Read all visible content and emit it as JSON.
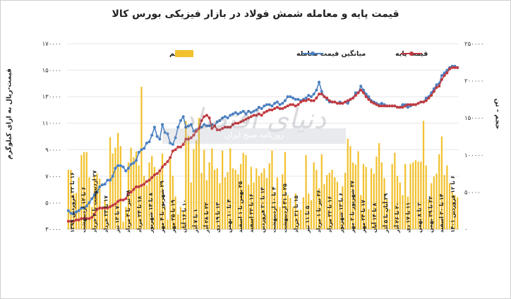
{
  "chart_data": {
    "type": "line",
    "title": "قیمت پایه و معامله شمش فولاد در بازار فیزیکی بورس کالا",
    "ylabel_left": "قیمت-ریال به ازای کیلوگرم",
    "ylabel_right": "حجم - تن",
    "y_left_ticks": [
      "۳۰۰۰۰",
      "۵۰۰۰۰",
      "۷۰۰۰۰",
      "۹۰۰۰۰",
      "۱۱۰۰۰۰",
      "۱۳۰۰۰۰",
      "۱۵۰۰۰۰",
      "۱۷۰۰۰۰"
    ],
    "y_left_range": [
      30000,
      170000
    ],
    "y_right_ticks": [
      "۰",
      "۵۰۰۰۰",
      "۱۰۰۰۰۰",
      "۱۵۰۰۰۰",
      "۲۰۰۰۰۰",
      "۲۵۰۰۰۰"
    ],
    "y_right_range": [
      0,
      250000
    ],
    "legend_position": "top",
    "x_tick_labels": [
      "۱۶ تا ۲۲ فروردین ۱۳۹۹",
      "۶ تا ۱۲ اردیبهشت",
      "۲۷ اردیبهشت تا ۲ خرداد",
      "۱۷ تا ۲۳ خرداد",
      "۷ تا ۱۳ تیر",
      "۲۸ تیر تا ۳ مرداد",
      "۱۸ تا ۲۴ مرداد",
      "۸ تا ۱۴ شهریور",
      "۲۹ شهریور تا ۴ مهر",
      "۱۹ تا ۲۵ مهر",
      "۱۰ تا ۱۶ آبان",
      "۱ تا ۷ آذر",
      "۲۲ تا ۲۸ آذر",
      "۱۳ تا ۱۹ دی",
      "۴ تا ۱۰ بهمن",
      "۲۵ بهمن تا ۱ اسفند",
      "۱۶ تا ۲۲ اسفند",
      "۱۴ تا ۲۰ فروردین",
      "۴ تا ۱۰ اردیبهشت",
      "۲۵ تا ۳۱ اردیبهشت",
      "۱۵ تا ۲۱ خرداد",
      "۵ تا ۱۱ تیر",
      "۲۶ تیر تا ۱ مرداد",
      "۱۶ تا ۲۲ مرداد",
      "۶ تا ۱۲ شهریور",
      "۲۷ شهریور تا ۲ مهر",
      "۱۷ تا ۲۳ مهر",
      "۸ تا ۱۴ آبان",
      "۲۹ آبان تا ۵ آذر",
      "۲۰ تا ۲۶ آذر",
      "۱۱ تا ۱۷ دی",
      "۲ تا ۸ بهمن",
      "۲۳ تا ۲۹ بهمن",
      "۱۴ تا ۲۰ اسفند",
      "۶ تا ۱۲ فروردین ۱۴۰۱"
    ],
    "series": [
      {
        "name": "حجم",
        "type": "bar",
        "axis": "right",
        "color": "#f2c12e",
        "values": [
          80000,
          80000,
          48000,
          49000,
          70000,
          100000,
          104000,
          104000,
          70000,
          30000,
          72000,
          75000,
          68000,
          30000,
          40000,
          34000,
          124000,
          102000,
          110000,
          130000,
          112000,
          10000,
          30000,
          90000,
          110000,
          97000,
          105000,
          86000,
          192000,
          72000,
          59000,
          90000,
          99000,
          84000,
          72000,
          81000,
          102000,
          30000,
          13000,
          94000,
          72000,
          44000,
          20000,
          30000,
          25000,
          146000,
          126000,
          63000,
          108000,
          120000,
          150000,
          76000,
          107000,
          66000,
          90000,
          109000,
          80000,
          82000,
          62000,
          106000,
          70000,
          77000,
          109000,
          82000,
          80000,
          74000,
          88000,
          103000,
          100000,
          60000,
          84000,
          63000,
          82000,
          72000,
          76000,
          82000,
          69000,
          89000,
          106000,
          50000,
          70000,
          30000,
          74000,
          104000,
          46000,
          42000,
          30000,
          48000,
          26000,
          26000,
          43000,
          100000,
          48000,
          39000,
          90000,
          80000,
          55000,
          101000,
          61000,
          73000,
          76000,
          80000,
          70000,
          64000,
          38000,
          58000,
          76000,
          122000,
          112000,
          90000,
          87000,
          105000,
          46000,
          88000,
          84000,
          27000,
          82000,
          75000,
          98000,
          116000,
          90000,
          69000,
          40000,
          27000,
          88000,
          103000,
          72000,
          63000,
          46000,
          88000,
          44000,
          88000,
          90000,
          93000,
          91000,
          91000,
          146000,
          86000,
          40000,
          62000,
          71000,
          75000,
          101000,
          125000,
          73000,
          86000,
          62000,
          50000,
          46000,
          43000
        ]
      },
      {
        "name": "میانگین قیمت معامله",
        "type": "line",
        "axis": "left",
        "color": "#4a7fc1",
        "values": [
          44000,
          42000,
          41500,
          43000,
          44000,
          46000,
          46000,
          47500,
          50000,
          53000,
          56000,
          58000,
          62000,
          63500,
          64000,
          67000,
          67000,
          70000,
          76000,
          78000,
          78000,
          77000,
          74000,
          76000,
          79000,
          80000,
          82000,
          88000,
          90000,
          91000,
          95000,
          96000,
          101000,
          107000,
          100000,
          98000,
          109000,
          103000,
          102000,
          95000,
          94000,
          99000,
          107000,
          112000,
          115000,
          107000,
          108000,
          109000,
          104000,
          105000,
          106000,
          107000,
          109000,
          108000,
          108000,
          109000,
          108000,
          111000,
          112000,
          114000,
          115000,
          114000,
          116000,
          117000,
          118000,
          117000,
          118000,
          119000,
          117000,
          119000,
          118000,
          119000,
          120000,
          122000,
          121000,
          123000,
          124000,
          124000,
          123000,
          125000,
          126000,
          124000,
          125000,
          127000,
          130000,
          130000,
          129000,
          128000,
          128000,
          127000,
          128000,
          129000,
          131000,
          130000,
          132000,
          135000,
          141000,
          134000,
          130000,
          128000,
          126000,
          126000,
          126000,
          125000,
          126000,
          125000,
          126000,
          125000,
          128000,
          129000,
          133000,
          133000,
          138000,
          135000,
          132000,
          130000,
          127000,
          126000,
          125000,
          124000,
          125000,
          124000,
          123000,
          123000,
          123000,
          123000,
          122000,
          122000,
          124000,
          124000,
          122000,
          123000,
          124000,
          124000,
          125000,
          126000,
          126000,
          129000,
          130000,
          133000,
          136000,
          139000,
          140000,
          146000,
          148000,
          150000,
          152000,
          153000,
          153000,
          152000
        ]
      },
      {
        "name": "قیمت پایه",
        "type": "line",
        "axis": "left",
        "color": "#c0393f",
        "values": [
          36000,
          36000,
          36000,
          37000,
          37000,
          38000,
          38000,
          38000,
          38000,
          39000,
          41000,
          45000,
          46000,
          46000,
          46000,
          46000,
          47000,
          48000,
          49000,
          51000,
          52000,
          52000,
          53000,
          57000,
          58000,
          60000,
          62000,
          62000,
          63000,
          64000,
          66000,
          67000,
          69000,
          71000,
          72000,
          74000,
          77000,
          79000,
          81000,
          84000,
          89000,
          90000,
          92000,
          92000,
          94000,
          98000,
          98000,
          99000,
          101000,
          104000,
          106000,
          112000,
          115000,
          116000,
          114000,
          106000,
          108000,
          105000,
          105000,
          106000,
          107000,
          107000,
          107000,
          109000,
          110000,
          110000,
          111000,
          112000,
          113000,
          114000,
          115000,
          116000,
          116000,
          117000,
          116000,
          118000,
          119000,
          120000,
          120000,
          121000,
          122000,
          121000,
          121000,
          122000,
          123000,
          124000,
          124000,
          123000,
          124000,
          126000,
          127000,
          127000,
          128000,
          127000,
          127000,
          129000,
          132000,
          132000,
          130000,
          129000,
          127000,
          126000,
          126000,
          125000,
          125000,
          125000,
          126000,
          127000,
          128000,
          129000,
          131000,
          133000,
          135000,
          133000,
          130000,
          128000,
          126000,
          125000,
          124000,
          123000,
          123000,
          123000,
          123000,
          123000,
          123000,
          123000,
          122000,
          122000,
          122000,
          123000,
          124000,
          124000,
          124000,
          124000,
          125000,
          126000,
          126000,
          127000,
          129000,
          131000,
          134000,
          137000,
          138000,
          143000,
          146000,
          148000,
          151000,
          152000,
          152000,
          152000
        ]
      }
    ]
  },
  "watermark": {
    "small": "روزنامه صبح ایران",
    "big": "دنیای اقتصاد"
  }
}
